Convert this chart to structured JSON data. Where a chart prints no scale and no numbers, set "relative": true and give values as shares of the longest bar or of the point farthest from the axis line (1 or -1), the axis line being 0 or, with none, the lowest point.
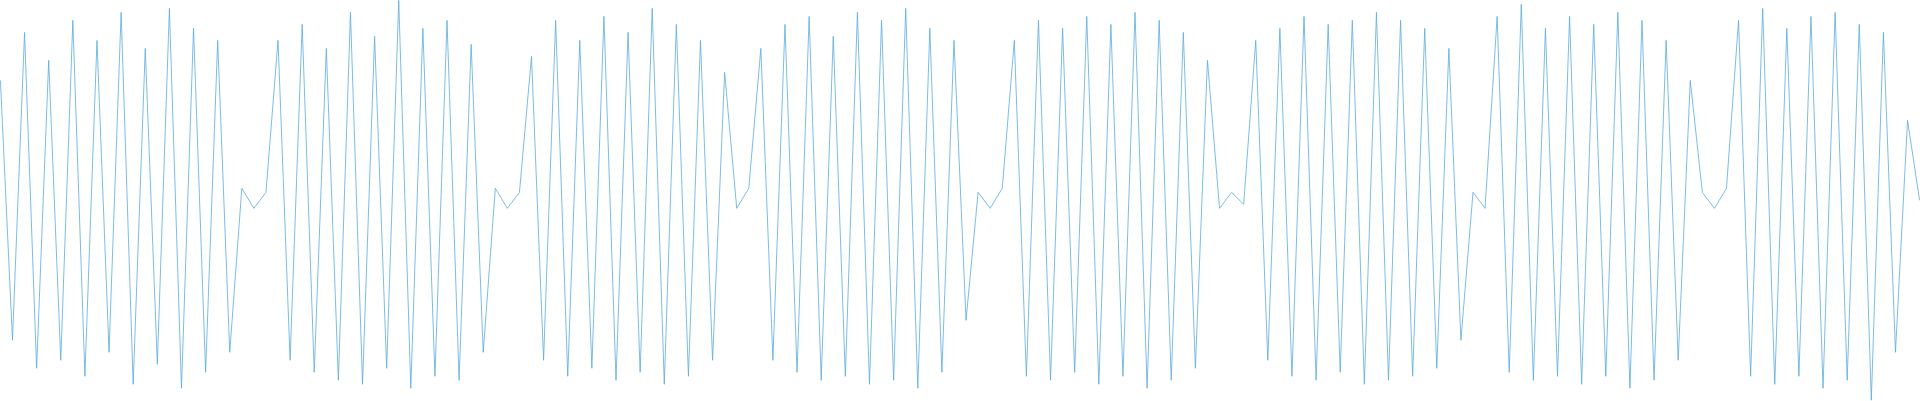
{
  "chart_data": {
    "type": "line",
    "relative": true,
    "color": "#5aaae0",
    "categories": [
      null,
      null,
      null,
      null,
      null,
      null,
      null,
      null,
      null,
      null,
      null,
      null,
      null,
      null,
      null,
      null,
      null,
      null,
      null,
      null,
      null,
      null,
      null,
      null,
      null,
      null,
      null,
      null,
      null,
      null,
      null,
      null,
      null,
      null,
      null,
      null,
      null,
      null,
      null,
      null,
      null,
      null,
      null,
      null,
      null,
      null,
      null,
      null,
      null,
      null,
      null,
      null,
      null,
      null,
      null,
      null,
      null,
      null,
      null,
      null,
      null,
      null,
      null,
      null,
      null,
      null,
      null,
      null,
      null,
      null,
      null,
      null,
      null,
      null,
      null,
      null,
      null,
      null,
      null,
      null,
      null,
      null,
      null,
      null,
      null,
      null,
      null,
      null,
      null,
      null,
      null,
      null,
      null,
      null,
      null,
      null,
      null,
      null,
      null,
      null,
      null,
      null,
      null,
      null,
      null,
      null,
      null,
      null,
      null,
      null,
      null,
      null,
      null,
      null,
      null,
      null,
      null,
      null,
      null,
      null,
      null,
      null,
      null,
      null,
      null,
      null,
      null,
      null,
      null,
      null,
      null,
      null,
      null,
      null,
      null,
      null,
      null,
      null,
      null,
      null,
      null,
      null,
      null,
      null,
      null,
      null,
      null,
      null,
      null,
      null,
      null,
      null,
      null,
      null,
      null,
      null,
      null,
      null,
      null,
      null
    ],
    "values": [
      0.8,
      0.15,
      0.92,
      0.08,
      0.85,
      0.1,
      0.95,
      0.06,
      0.9,
      0.12,
      0.97,
      0.04,
      0.88,
      0.09,
      0.98,
      0.03,
      0.93,
      0.07,
      0.9,
      0.12,
      0.53,
      0.48,
      0.52,
      0.9,
      0.1,
      0.94,
      0.07,
      0.88,
      0.05,
      0.97,
      0.04,
      0.91,
      0.08,
      1.0,
      0.03,
      0.93,
      0.06,
      0.95,
      0.05,
      0.89,
      0.12,
      0.53,
      0.48,
      0.52,
      0.86,
      0.1,
      0.95,
      0.06,
      0.9,
      0.08,
      0.96,
      0.05,
      0.92,
      0.07,
      0.98,
      0.04,
      0.94,
      0.06,
      0.9,
      0.1,
      0.82,
      0.48,
      0.53,
      0.88,
      0.1,
      0.94,
      0.07,
      0.96,
      0.05,
      0.91,
      0.06,
      0.97,
      0.04,
      0.95,
      0.05,
      0.98,
      0.03,
      0.93,
      0.07,
      0.9,
      0.2,
      0.52,
      0.48,
      0.53,
      0.9,
      0.06,
      0.95,
      0.05,
      0.93,
      0.07,
      0.96,
      0.04,
      0.94,
      0.06,
      0.97,
      0.03,
      0.95,
      0.05,
      0.92,
      0.08,
      0.85,
      0.48,
      0.52,
      0.49,
      0.9,
      0.1,
      0.93,
      0.06,
      0.96,
      0.05,
      0.94,
      0.07,
      0.95,
      0.04,
      0.97,
      0.05,
      0.95,
      0.06,
      0.93,
      0.08,
      0.88,
      0.15,
      0.52,
      0.48,
      0.96,
      0.07,
      0.99,
      0.05,
      0.93,
      0.06,
      0.96,
      0.04,
      0.94,
      0.06,
      0.97,
      0.03,
      0.95,
      0.05,
      0.9,
      0.1,
      0.8,
      0.52,
      0.48,
      0.53,
      0.95,
      0.06,
      0.98,
      0.04,
      0.93,
      0.06,
      0.96,
      0.03,
      0.97,
      0.05,
      0.94,
      0.0,
      0.92,
      0.12,
      0.7,
      0.5
    ]
  }
}
